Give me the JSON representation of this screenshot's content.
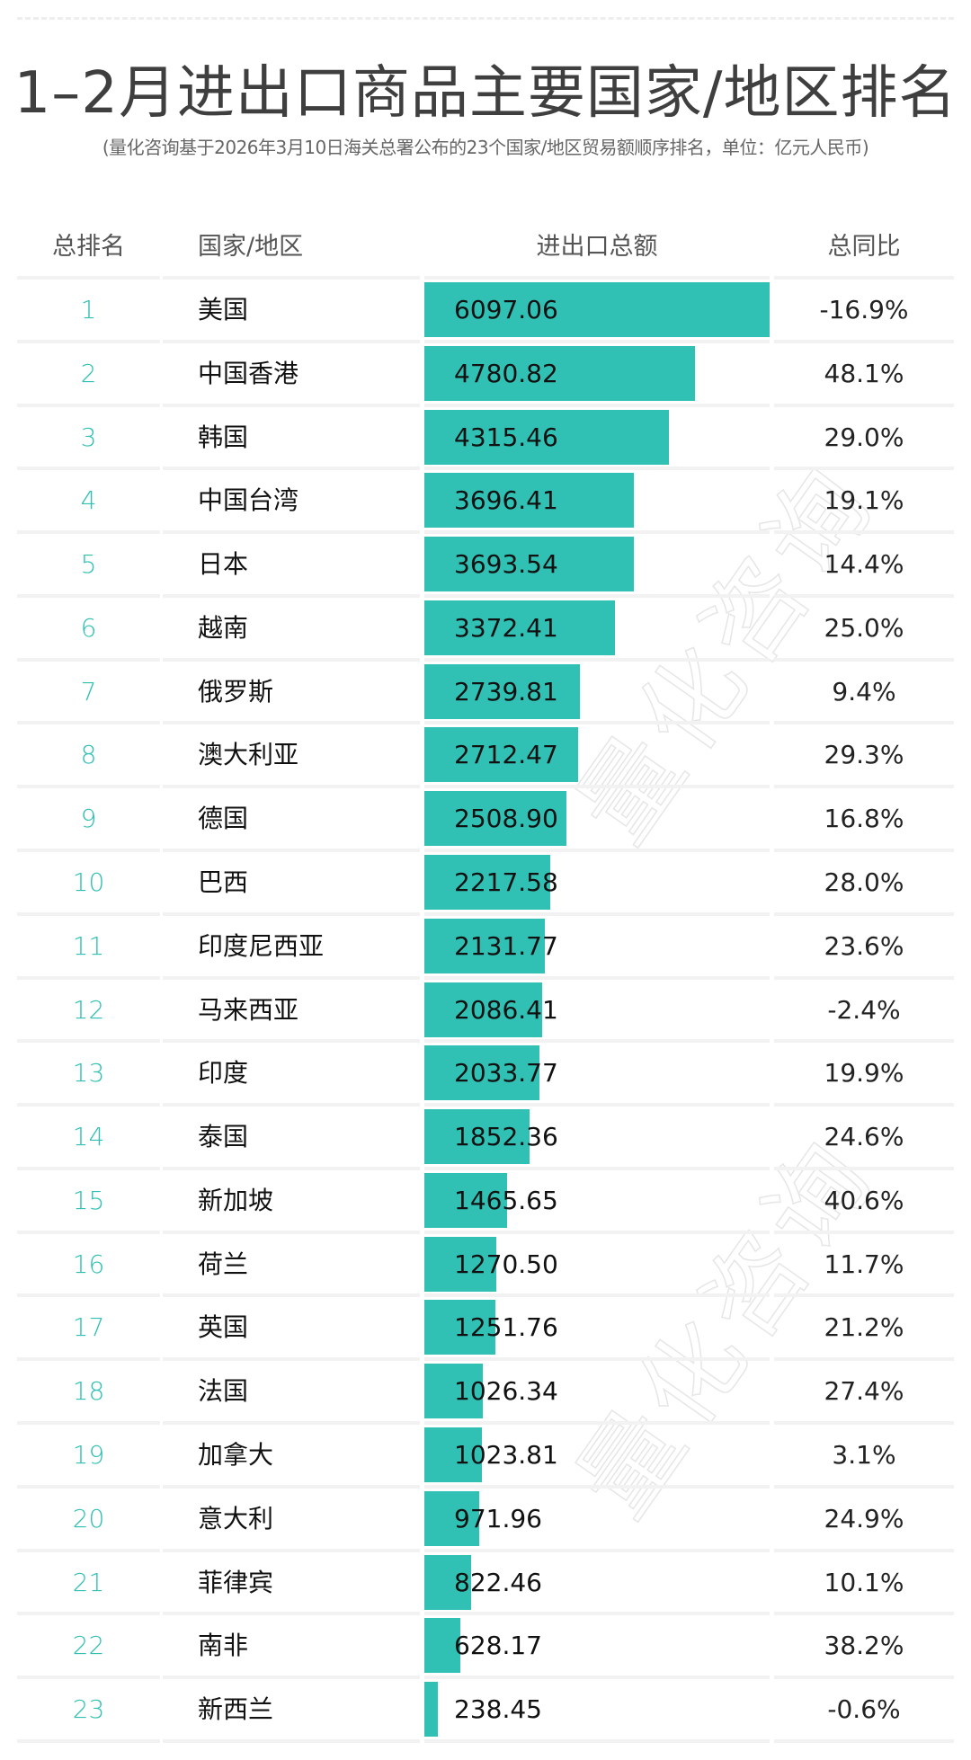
{
  "header": {
    "title": "1–2月进出口商品主要国家/地区排名",
    "subtitle": "(量化咨询基于2026年3月10日海关总署公布的23个国家/地区贸易额顺序排名，单位：亿元人民币)"
  },
  "columns": {
    "rank": "总排名",
    "country": "国家/地区",
    "total": "进出口总额",
    "yoy": "总同比"
  },
  "watermark": "量化咨询",
  "colors": {
    "bar": "#30c1b4",
    "rank_text": "#2fc0b3",
    "separator": "#f2f2f2"
  },
  "rows": [
    {
      "rank": "1",
      "country": "美国",
      "total": "6097.06",
      "yoy": "-16.9%"
    },
    {
      "rank": "2",
      "country": "中国香港",
      "total": "4780.82",
      "yoy": "48.1%"
    },
    {
      "rank": "3",
      "country": "韩国",
      "total": "4315.46",
      "yoy": "29.0%"
    },
    {
      "rank": "4",
      "country": "中国台湾",
      "total": "3696.41",
      "yoy": "19.1%"
    },
    {
      "rank": "5",
      "country": "日本",
      "total": "3693.54",
      "yoy": "14.4%"
    },
    {
      "rank": "6",
      "country": "越南",
      "total": "3372.41",
      "yoy": "25.0%"
    },
    {
      "rank": "7",
      "country": "俄罗斯",
      "total": "2739.81",
      "yoy": "9.4%"
    },
    {
      "rank": "8",
      "country": "澳大利亚",
      "total": "2712.47",
      "yoy": "29.3%"
    },
    {
      "rank": "9",
      "country": "德国",
      "total": "2508.90",
      "yoy": "16.8%"
    },
    {
      "rank": "10",
      "country": "巴西",
      "total": "2217.58",
      "yoy": "28.0%"
    },
    {
      "rank": "11",
      "country": "印度尼西亚",
      "total": "2131.77",
      "yoy": "23.6%"
    },
    {
      "rank": "12",
      "country": "马来西亚",
      "total": "2086.41",
      "yoy": "-2.4%"
    },
    {
      "rank": "13",
      "country": "印度",
      "total": "2033.77",
      "yoy": "19.9%"
    },
    {
      "rank": "14",
      "country": "泰国",
      "total": "1852.36",
      "yoy": "24.6%"
    },
    {
      "rank": "15",
      "country": "新加坡",
      "total": "1465.65",
      "yoy": "40.6%"
    },
    {
      "rank": "16",
      "country": "荷兰",
      "total": "1270.50",
      "yoy": "11.7%"
    },
    {
      "rank": "17",
      "country": "英国",
      "total": "1251.76",
      "yoy": "21.2%"
    },
    {
      "rank": "18",
      "country": "法国",
      "total": "1026.34",
      "yoy": "27.4%"
    },
    {
      "rank": "19",
      "country": "加拿大",
      "total": "1023.81",
      "yoy": "3.1%"
    },
    {
      "rank": "20",
      "country": "意大利",
      "total": "971.96",
      "yoy": "24.9%"
    },
    {
      "rank": "21",
      "country": "菲律宾",
      "total": "822.46",
      "yoy": "10.1%"
    },
    {
      "rank": "22",
      "country": "南非",
      "total": "628.17",
      "yoy": "38.2%"
    },
    {
      "rank": "23",
      "country": "新西兰",
      "total": "238.45",
      "yoy": "-0.6%"
    }
  ],
  "chart_data": {
    "type": "bar",
    "orientation": "horizontal",
    "title": "1–2月进出口商品主要国家/地区排名",
    "subtitle": "(量化咨询基于2026年3月10日海关总署公布的23个国家/地区贸易额顺序排名，单位：亿元人民币)",
    "xlabel": "进出口总额",
    "ylabel": "国家/地区",
    "unit": "亿元人民币",
    "categories": [
      "美国",
      "中国香港",
      "韩国",
      "中国台湾",
      "日本",
      "越南",
      "俄罗斯",
      "澳大利亚",
      "德国",
      "巴西",
      "印度尼西亚",
      "马来西亚",
      "印度",
      "泰国",
      "新加坡",
      "荷兰",
      "英国",
      "法国",
      "加拿大",
      "意大利",
      "菲律宾",
      "南非",
      "新西兰"
    ],
    "series": [
      {
        "name": "进出口总额",
        "values": [
          6097.06,
          4780.82,
          4315.46,
          3696.41,
          3693.54,
          3372.41,
          2739.81,
          2712.47,
          2508.9,
          2217.58,
          2131.77,
          2086.41,
          2033.77,
          1852.36,
          1465.65,
          1270.5,
          1251.76,
          1026.34,
          1023.81,
          971.96,
          822.46,
          628.17,
          238.45
        ]
      },
      {
        "name": "总同比(%)",
        "values": [
          -16.9,
          48.1,
          29.0,
          19.1,
          14.4,
          25.0,
          9.4,
          29.3,
          16.8,
          28.0,
          23.6,
          -2.4,
          19.9,
          24.6,
          40.6,
          11.7,
          21.2,
          27.4,
          3.1,
          24.9,
          10.1,
          38.2,
          -0.6
        ]
      }
    ],
    "xlim": [
      0,
      6097.06
    ],
    "grid": false,
    "legend": "none"
  }
}
